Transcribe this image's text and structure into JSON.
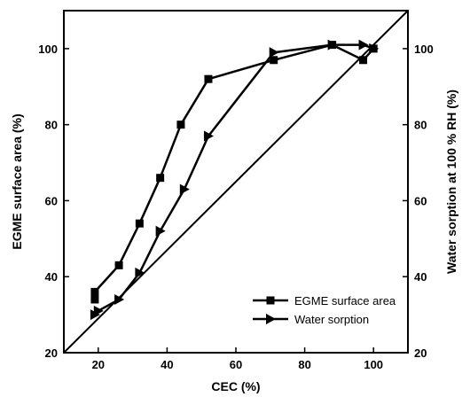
{
  "chart_data": {
    "type": "line",
    "x_axis": {
      "label": "CEC (%)",
      "range": [
        10,
        110
      ],
      "ticks": [
        20,
        40,
        60,
        80,
        100
      ]
    },
    "y_axis_left": {
      "label": "EGME surface area (%)",
      "range": [
        20,
        110
      ],
      "ticks": [
        20,
        40,
        60,
        80,
        100
      ]
    },
    "y_axis_right": {
      "label": "Water sorption at 100 % RH (%)",
      "range": [
        20,
        110
      ],
      "ticks": [
        20,
        40,
        60,
        80,
        100
      ]
    },
    "series": [
      {
        "name": "EGME surface area",
        "marker": "square",
        "color": "#000000",
        "points": [
          [
            19,
            34
          ],
          [
            19,
            36
          ],
          [
            26,
            43
          ],
          [
            32,
            54
          ],
          [
            38,
            66
          ],
          [
            44,
            80
          ],
          [
            52,
            92
          ],
          [
            71,
            97
          ],
          [
            88,
            101
          ],
          [
            97,
            97
          ],
          [
            100,
            100
          ]
        ]
      },
      {
        "name": "Water sorption",
        "marker": "triangle-right",
        "color": "#000000",
        "points": [
          [
            19,
            30
          ],
          [
            20,
            31
          ],
          [
            26,
            34
          ],
          [
            32,
            41
          ],
          [
            38,
            52
          ],
          [
            45,
            63
          ],
          [
            52,
            77
          ],
          [
            71,
            99
          ],
          [
            88,
            101
          ],
          [
            97,
            101
          ],
          [
            100,
            100
          ]
        ]
      }
    ],
    "reference_line": {
      "from": [
        10,
        20
      ],
      "to": [
        110,
        110
      ],
      "color": "#000000"
    },
    "legend": {
      "placement": "bottom-right",
      "entries": [
        "EGME surface area",
        "Water sorption"
      ]
    },
    "grid": false
  }
}
